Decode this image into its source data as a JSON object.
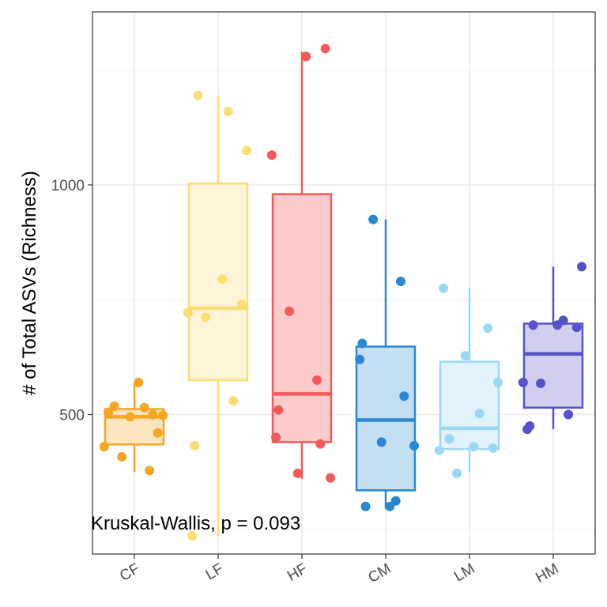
{
  "chart_data": {
    "type": "boxplot",
    "title": "",
    "xlabel": "",
    "ylabel": "# of Total ASVs (Richness)",
    "ylim": [
      220,
      1400
    ],
    "yticks": [
      500,
      1000
    ],
    "grid": true,
    "annotation": "Kruskal-Wallis, p = 0.093",
    "categories": [
      "CF",
      "LF",
      "HF",
      "CM",
      "LM",
      "HM"
    ],
    "boxes": [
      {
        "group": "CF",
        "color": "#F5A623",
        "fill": "#FDE5BF",
        "q1": 435,
        "median": 495,
        "q3": 512,
        "whisker_low": 375,
        "whisker_high": 570,
        "points": [
          505,
          500,
          495,
          498,
          515,
          518,
          570,
          460,
          430,
          408,
          378
        ]
      },
      {
        "group": "LF",
        "color": "#FCDD71",
        "fill": "#FEF5D9",
        "q1": 575,
        "median": 732,
        "q3": 1003,
        "whisker_low": 236,
        "whisker_high": 1195,
        "points": [
          1075,
          1160,
          1195,
          795,
          740,
          722,
          712,
          530,
          432,
          236
        ]
      },
      {
        "group": "HF",
        "color": "#F05A5A",
        "fill": "#FECBCD",
        "q1": 440,
        "median": 545,
        "q3": 980,
        "whisker_low": 360,
        "whisker_high": 1290,
        "points": [
          1280,
          1297,
          1065,
          725,
          575,
          510,
          450,
          436,
          372,
          362
        ]
      },
      {
        "group": "CM",
        "color": "#2A87D1",
        "fill": "#C4DEF2",
        "q1": 335,
        "median": 488,
        "q3": 648,
        "whisker_low": 295,
        "whisker_high": 925,
        "points": [
          925,
          790,
          655,
          620,
          540,
          440,
          432,
          312,
          300,
          300
        ]
      },
      {
        "group": "LM",
        "color": "#9AD8F5",
        "fill": "#E2F3FC",
        "q1": 425,
        "median": 470,
        "q3": 615,
        "whisker_low": 375,
        "whisker_high": 775,
        "points": [
          775,
          688,
          628,
          570,
          502,
          447,
          430,
          427,
          422,
          372
        ]
      },
      {
        "group": "HM",
        "color": "#5752C9",
        "fill": "#D1CEF0",
        "q1": 515,
        "median": 632,
        "q3": 698,
        "whisker_low": 468,
        "whisker_high": 822,
        "points": [
          822,
          705,
          695,
          695,
          690,
          570,
          568,
          500,
          475,
          468
        ]
      }
    ]
  }
}
